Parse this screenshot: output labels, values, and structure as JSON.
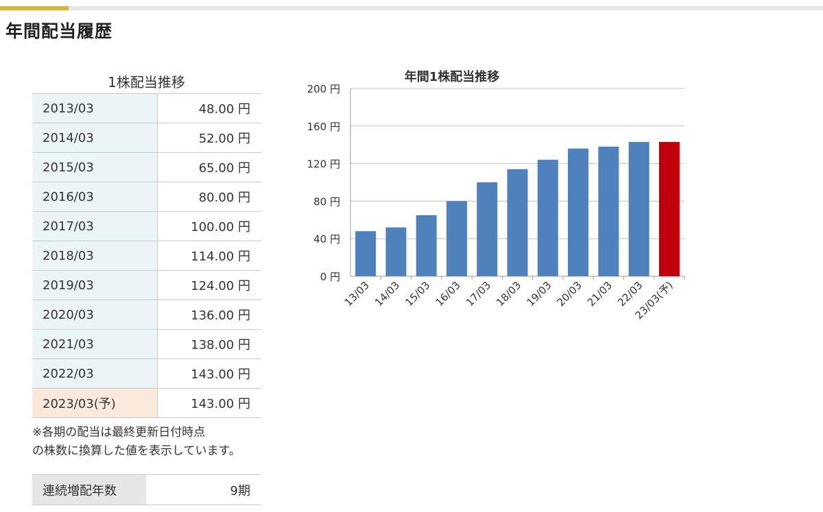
{
  "page": {
    "title": "年間配当履歴"
  },
  "dividend_table": {
    "caption": "1株配当推移",
    "rows": [
      {
        "year": "2013/03",
        "amount": "48.00 円"
      },
      {
        "year": "2014/03",
        "amount": "52.00 円"
      },
      {
        "year": "2015/03",
        "amount": "65.00 円"
      },
      {
        "year": "2016/03",
        "amount": "80.00 円"
      },
      {
        "year": "2017/03",
        "amount": "100.00 円"
      },
      {
        "year": "2018/03",
        "amount": "114.00 円"
      },
      {
        "year": "2019/03",
        "amount": "124.00 円"
      },
      {
        "year": "2020/03",
        "amount": "136.00 円"
      },
      {
        "year": "2021/03",
        "amount": "138.00 円"
      },
      {
        "year": "2022/03",
        "amount": "143.00 円"
      },
      {
        "year": "2023/03(予)",
        "amount": "143.00 円",
        "forecast": true
      }
    ]
  },
  "note": {
    "line1": "※各期の配当は最終更新日付時点",
    "line2": "の株数に換算した値を表示しています。"
  },
  "streak": {
    "label": "連続増配年数",
    "value": "9期"
  },
  "colors": {
    "bar": "#4f81bd",
    "forecast_bar": "#c0000c",
    "accent": "#d9b533"
  },
  "chart_data": {
    "type": "bar",
    "title": "年間1株配当推移",
    "categories": [
      "13/03",
      "14/03",
      "15/03",
      "16/03",
      "17/03",
      "18/03",
      "19/03",
      "20/03",
      "21/03",
      "22/03",
      "23/03(予)"
    ],
    "values": [
      48,
      52,
      65,
      80,
      100,
      114,
      124,
      136,
      138,
      143,
      143
    ],
    "highlight_last": true,
    "ylim": [
      0,
      200
    ],
    "yticks": [
      0,
      40,
      80,
      120,
      160,
      200
    ],
    "ytick_labels": [
      "0 円",
      "40 円",
      "80 円",
      "120 円",
      "160 円",
      "200 円"
    ],
    "grid": true,
    "legend": "none",
    "xlabel": "",
    "ylabel": ""
  }
}
